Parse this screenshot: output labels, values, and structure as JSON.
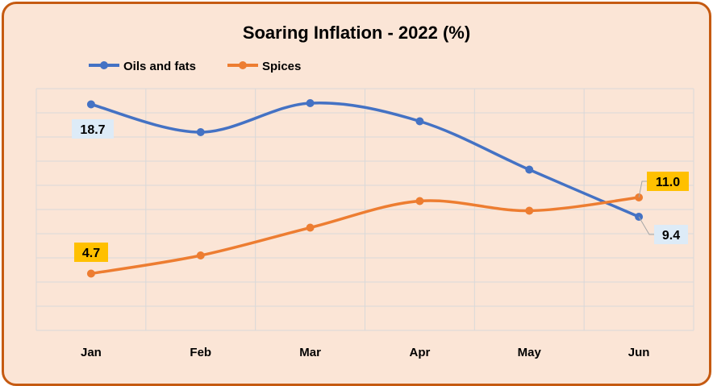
{
  "chart_data": {
    "type": "line",
    "title": "Soaring Inflation - 2022 (%)",
    "categories": [
      "Jan",
      "Feb",
      "Mar",
      "Apr",
      "May",
      "Jun"
    ],
    "series": [
      {
        "name": "Oils and fats",
        "color": "#4472C4",
        "values": [
          18.7,
          16.4,
          18.8,
          17.3,
          13.3,
          9.4
        ]
      },
      {
        "name": "Spices",
        "color": "#ED7D31",
        "values": [
          4.7,
          6.2,
          8.5,
          10.7,
          9.9,
          11.0
        ]
      }
    ],
    "data_labels": [
      {
        "series": 0,
        "index": 0,
        "text": "18.7",
        "bg": "#DDEBF7"
      },
      {
        "series": 0,
        "index": 5,
        "text": "9.4",
        "bg": "#DDEBF7"
      },
      {
        "series": 1,
        "index": 0,
        "text": "4.7",
        "bg": "#FFC000"
      },
      {
        "series": 1,
        "index": 5,
        "text": "11.0",
        "bg": "#FFC000"
      }
    ],
    "ylim": [
      0,
      20
    ],
    "y_axis_labels_shown": false,
    "grid": true,
    "smooth": true,
    "legend": "top-left",
    "background": "#FBE5D6",
    "border_color": "#C55A11"
  }
}
